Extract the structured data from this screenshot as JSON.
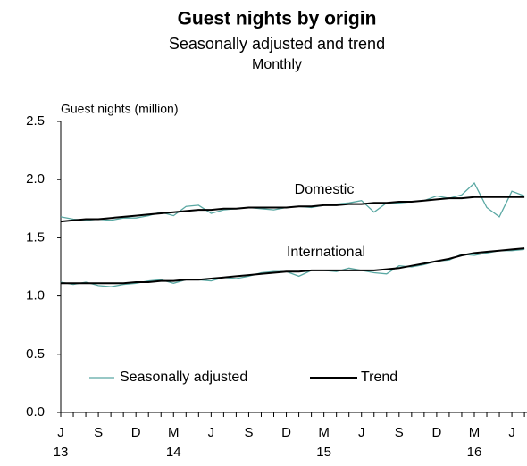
{
  "chart_data": {
    "type": "line",
    "title": "Guest nights by origin",
    "subtitle": "Seasonally adjusted and trend",
    "frequency": "Monthly",
    "y_label": "Guest nights (million)",
    "categories": [
      "J",
      null,
      null,
      "S",
      null,
      null,
      "D",
      null,
      null,
      "M",
      null,
      null,
      "J",
      null,
      null,
      "S",
      null,
      null,
      "D",
      null,
      null,
      "M",
      null,
      null,
      "J",
      null,
      null,
      "S",
      null,
      null,
      "D",
      null,
      null,
      "M",
      null,
      null,
      "J",
      null
    ],
    "years": [
      "13",
      null,
      null,
      null,
      null,
      null,
      null,
      null,
      null,
      "14",
      null,
      null,
      null,
      null,
      null,
      null,
      null,
      null,
      null,
      null,
      null,
      "15",
      null,
      null,
      null,
      null,
      null,
      null,
      null,
      null,
      null,
      null,
      null,
      "16",
      null,
      null,
      null,
      null
    ],
    "ylim": [
      0,
      2.5
    ],
    "yticks": [
      {
        "value": 0,
        "label": "0.0"
      },
      0.5,
      {
        "value": 1,
        "label": "1.0"
      },
      1.5,
      {
        "value": 2,
        "label": "2.0"
      },
      2.5
    ],
    "grid": false,
    "legend": [
      {
        "name": "Seasonally adjusted",
        "color": "#5aa8a3"
      },
      {
        "name": "Trend",
        "color": "#000000"
      }
    ],
    "origins": [
      {
        "label": "Domestic",
        "series": [
          {
            "values": [
              1.68,
              1.66,
              1.65,
              1.66,
              1.65,
              1.67,
              1.67,
              1.69,
              1.72,
              1.69,
              1.77,
              1.78,
              1.71,
              1.74,
              1.75,
              1.76,
              1.75,
              1.74,
              1.76,
              1.77,
              1.76,
              1.78,
              1.79,
              1.8,
              1.82,
              1.72,
              1.8,
              1.8,
              1.81,
              1.82,
              1.86,
              1.84,
              1.87,
              1.97,
              1.76,
              1.68,
              1.9,
              1.86
            ]
          },
          {
            "values": [
              1.64,
              1.65,
              1.66,
              1.66,
              1.67,
              1.68,
              1.69,
              1.7,
              1.71,
              1.72,
              1.73,
              1.74,
              1.74,
              1.75,
              1.75,
              1.76,
              1.76,
              1.76,
              1.76,
              1.77,
              1.77,
              1.78,
              1.78,
              1.79,
              1.79,
              1.8,
              1.8,
              1.81,
              1.81,
              1.82,
              1.83,
              1.84,
              1.84,
              1.85,
              1.85,
              1.85,
              1.85,
              1.85
            ]
          }
        ]
      },
      {
        "label": "International",
        "series": [
          {
            "values": [
              1.12,
              1.1,
              1.12,
              1.09,
              1.08,
              1.1,
              1.11,
              1.13,
              1.14,
              1.11,
              1.14,
              1.14,
              1.13,
              1.16,
              1.15,
              1.17,
              1.2,
              1.21,
              1.21,
              1.17,
              1.22,
              1.22,
              1.21,
              1.24,
              1.22,
              1.2,
              1.19,
              1.26,
              1.25,
              1.27,
              1.3,
              1.31,
              1.36,
              1.35,
              1.37,
              1.39,
              1.39,
              1.4
            ]
          },
          {
            "values": [
              1.11,
              1.11,
              1.11,
              1.11,
              1.11,
              1.11,
              1.12,
              1.12,
              1.13,
              1.13,
              1.14,
              1.14,
              1.15,
              1.16,
              1.17,
              1.18,
              1.19,
              1.2,
              1.21,
              1.21,
              1.22,
              1.22,
              1.22,
              1.22,
              1.22,
              1.22,
              1.23,
              1.24,
              1.26,
              1.28,
              1.3,
              1.32,
              1.35,
              1.37,
              1.38,
              1.39,
              1.4,
              1.41
            ]
          }
        ]
      }
    ]
  }
}
